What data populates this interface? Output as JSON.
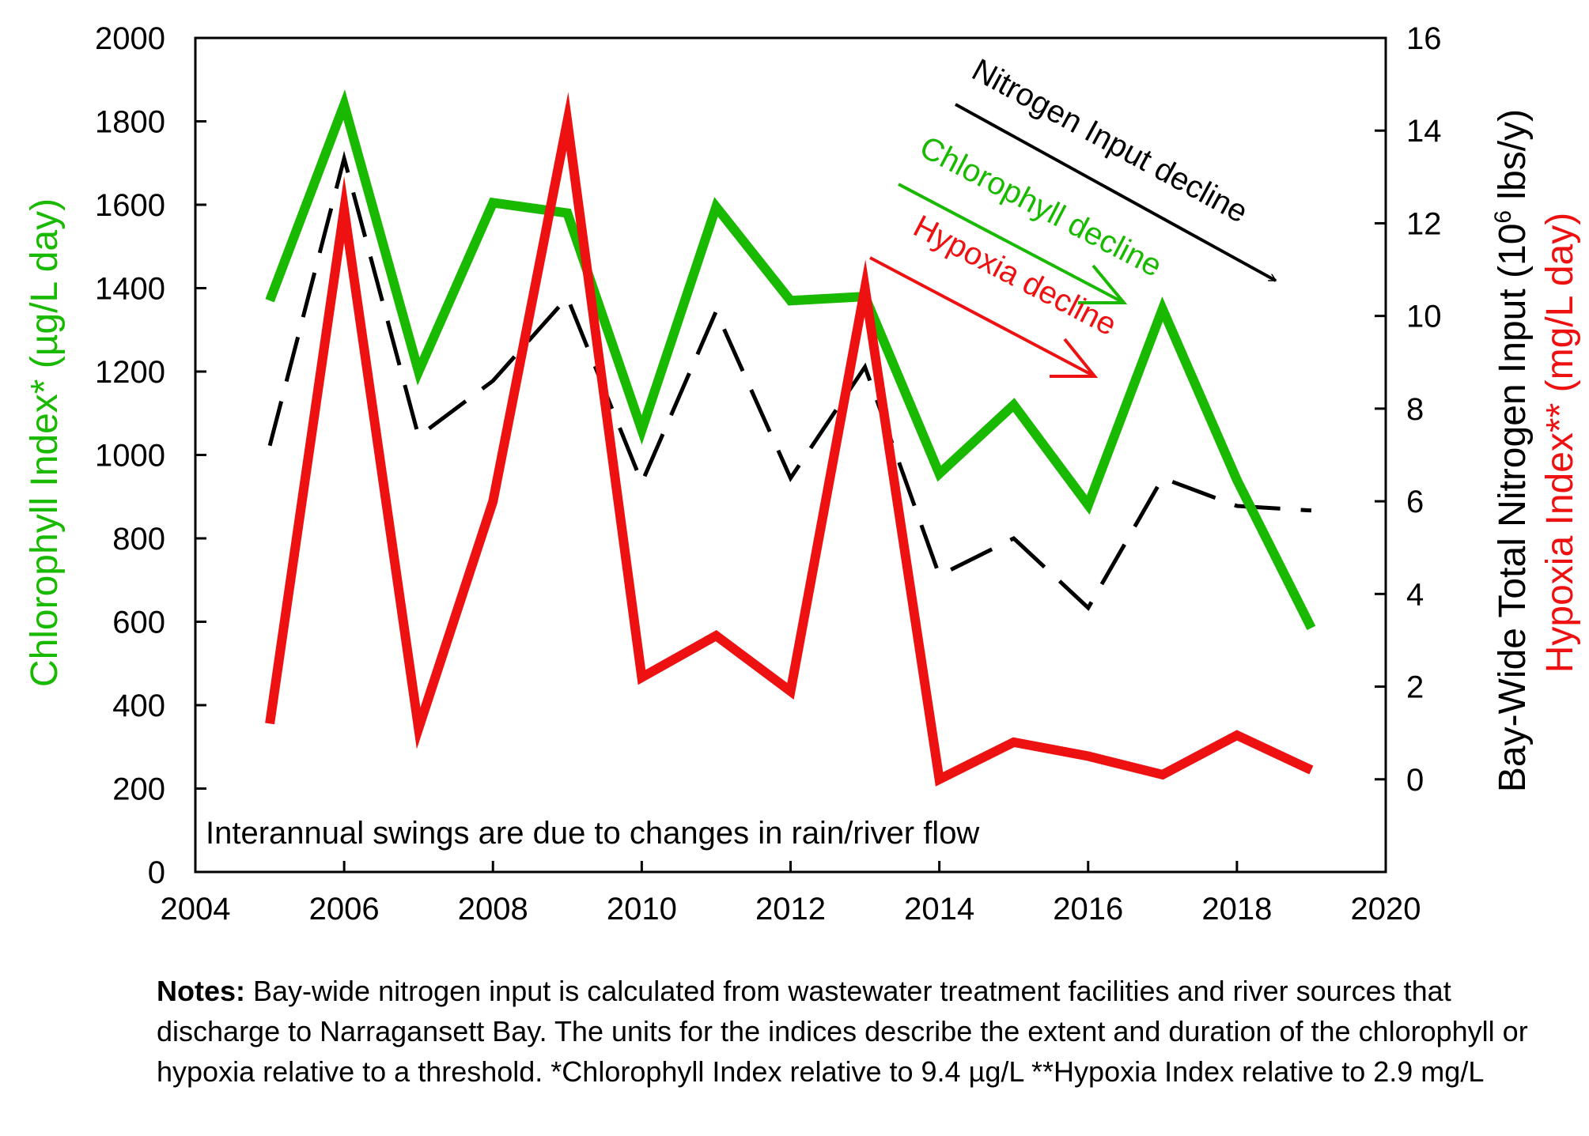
{
  "chart_data": {
    "type": "line",
    "x": [
      2005,
      2006,
      2007,
      2008,
      2009,
      2010,
      2011,
      2012,
      2013,
      2014,
      2015,
      2016,
      2017,
      2018,
      2019
    ],
    "xlim": [
      2004,
      2020
    ],
    "x_ticks": [
      2004,
      2006,
      2008,
      2010,
      2012,
      2014,
      2016,
      2018,
      2020
    ],
    "ylabel_left": "Chlorophyll Index* (µg/L day)",
    "ylim_left": [
      0,
      2000
    ],
    "y_ticks_left": [
      0,
      200,
      400,
      600,
      800,
      1000,
      1200,
      1400,
      1600,
      1800,
      2000
    ],
    "ylabel_right_black": "Bay-Wide Total Nitrogen Input (10",
    "ylabel_right_black_sup": "6",
    "ylabel_right_black_end": " lbs/y)",
    "ylabel_right_red": "Hypoxia Index** (mg/L day)",
    "ylim_right": [
      -2,
      16
    ],
    "y_ticks_right": [
      0,
      2,
      4,
      6,
      8,
      10,
      12,
      14,
      16
    ],
    "series": [
      {
        "name": "Chlorophyll Index",
        "axis": "left",
        "color": "#19b900",
        "style": "solid",
        "values": [
          1370,
          1840,
          1200,
          1605,
          1580,
          1060,
          1595,
          1370,
          1380,
          955,
          1120,
          880,
          1350,
          940,
          585
        ]
      },
      {
        "name": "Bay-Wide Total Nitrogen Input",
        "axis": "right",
        "color": "#000000",
        "style": "dashed",
        "values": [
          7.2,
          13.4,
          7.4,
          8.6,
          10.4,
          6.4,
          10.1,
          6.5,
          8.9,
          4.4,
          5.2,
          3.7,
          6.5,
          5.9,
          5.8
        ]
      },
      {
        "name": "Hypoxia Index",
        "axis": "right",
        "color": "#ee1111",
        "style": "solid",
        "values": [
          1.2,
          12.3,
          1.1,
          6.0,
          14.2,
          2.2,
          3.1,
          1.9,
          10.6,
          0.0,
          0.8,
          0.5,
          0.1,
          0.95,
          0.2
        ]
      }
    ],
    "annotations": [
      {
        "text": "Nitrogen Input decline",
        "color": "#000000"
      },
      {
        "text": "Chlorophyll decline",
        "color": "#19b900"
      },
      {
        "text": "Hypoxia decline",
        "color": "#ee1111"
      },
      {
        "text": "Interannual swings are due to changes in rain/river flow",
        "color": "#000000"
      }
    ]
  },
  "notes": {
    "label": "Notes:",
    "text": " Bay-wide nitrogen input is calculated from wastewater treatment facilities and river sources that discharge to Narragansett Bay. The units for the indices describe the extent and duration of the chlorophyll or hypoxia relative to a threshold. *Chlorophyll Index relative to 9.4 µg/L **Hypoxia Index relative to 2.9 mg/L"
  }
}
